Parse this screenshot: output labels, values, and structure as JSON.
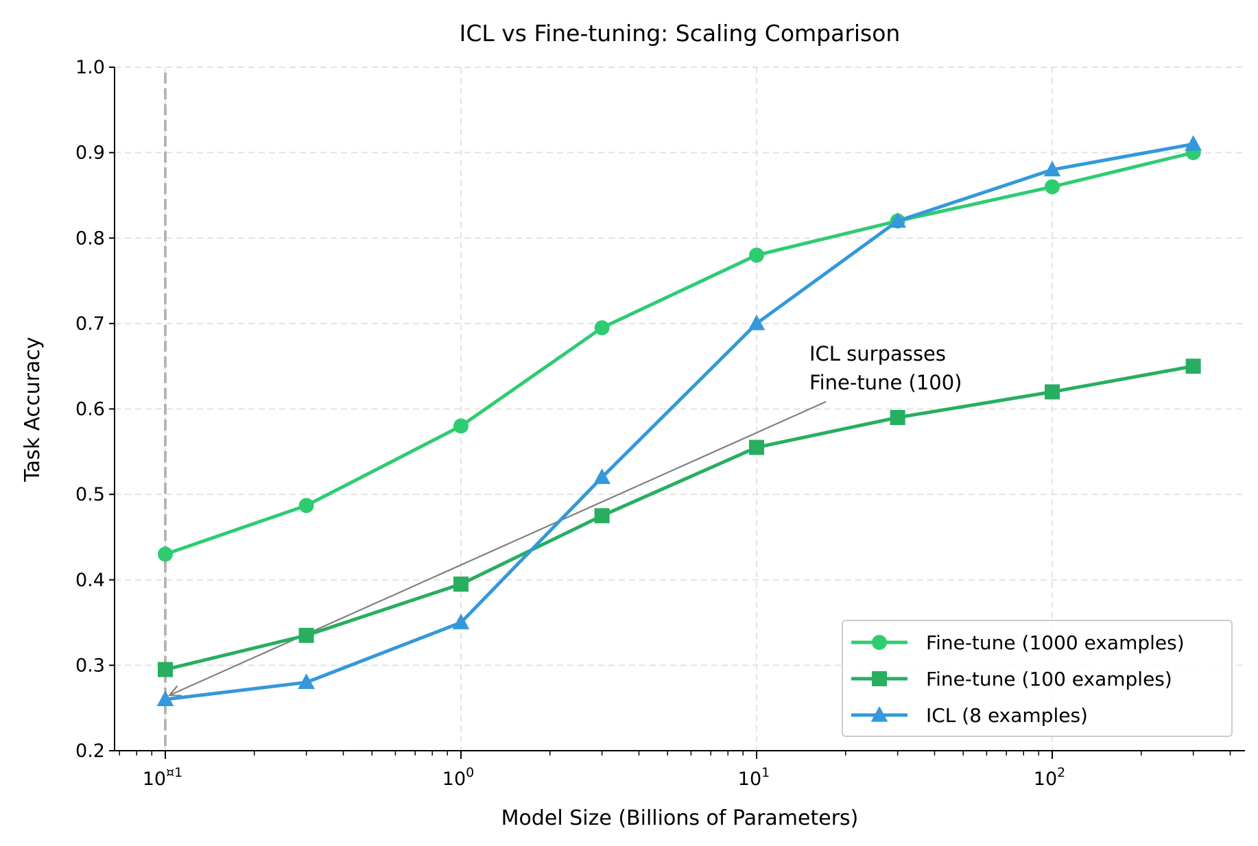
{
  "chart_data": {
    "type": "line",
    "title": "ICL vs Fine-tuning: Scaling Comparison",
    "xlabel": "Model Size (Billions of Parameters)",
    "ylabel": "Task Accuracy",
    "xscale": "log",
    "xlim": [
      0.067,
      450
    ],
    "ylim": [
      0.2,
      1.0
    ],
    "grid": true,
    "legend_position": "lower-right",
    "x": [
      0.1,
      0.3,
      1,
      3,
      10,
      30,
      100,
      300
    ],
    "xticks": [
      {
        "value": 0.1,
        "base": "10",
        "exp": "¤1"
      },
      {
        "value": 1,
        "base": "10",
        "exp": "0"
      },
      {
        "value": 10,
        "base": "10",
        "exp": "1"
      },
      {
        "value": 100,
        "base": "10",
        "exp": "2"
      }
    ],
    "yticks": [
      "0.2",
      "0.3",
      "0.4",
      "0.5",
      "0.6",
      "0.7",
      "0.8",
      "0.9",
      "1.0"
    ],
    "series": [
      {
        "name": "Fine-tune (1000 examples)",
        "color": "#2ecc71",
        "marker": "circle",
        "values": [
          0.43,
          0.487,
          0.58,
          0.695,
          0.78,
          0.82,
          0.86,
          0.9
        ]
      },
      {
        "name": "Fine-tune (100 examples)",
        "color": "#27ae60",
        "marker": "square",
        "values": [
          0.295,
          0.335,
          0.395,
          0.475,
          0.555,
          0.59,
          0.62,
          0.65
        ]
      },
      {
        "name": "ICL (8 examples)",
        "color": "#3498db",
        "marker": "triangle",
        "values": [
          0.26,
          0.28,
          0.35,
          0.52,
          0.7,
          0.82,
          0.88,
          0.91
        ]
      }
    ],
    "reference_line": {
      "x": 0.1,
      "color": "#aaaaaa",
      "style": "dashed"
    },
    "annotation": {
      "lines": [
        "ICL surpasses",
        "Fine-tune (100)"
      ],
      "text_at": [
        17,
        0.61
      ],
      "arrow_to": [
        0.1,
        0.26
      ],
      "color": "#808080"
    }
  }
}
